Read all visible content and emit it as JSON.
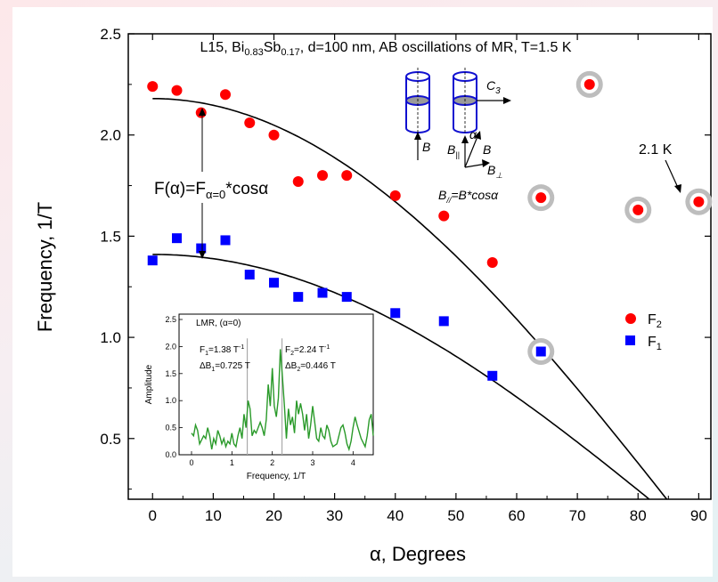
{
  "colors": {
    "f2": "#ff0000",
    "f1": "#0000ff",
    "spectrum": "#2a9a2a",
    "fit": "#000000",
    "halo": "#bdbdbd"
  },
  "chart_data": {
    "type": "scatter",
    "title": "",
    "xlabel": "α, Degrees",
    "ylabel": "Frequency, 1/T",
    "xlim": [
      -4,
      92
    ],
    "ylim": [
      0.2,
      2.5
    ],
    "xticks": [
      "0",
      "10",
      "20",
      "30",
      "40",
      "50",
      "60",
      "70",
      "80",
      "90"
    ],
    "yticks": [
      "0.5",
      "1.0",
      "1.5",
      "2.0",
      "2.5"
    ],
    "legend_position": "right-middle",
    "series": [
      {
        "name": "F2",
        "marker": "circle",
        "points": [
          [
            0,
            2.24
          ],
          [
            4,
            2.22
          ],
          [
            8,
            2.11
          ],
          [
            12,
            2.2
          ],
          [
            16,
            2.06
          ],
          [
            20,
            2.0
          ],
          [
            24,
            1.77
          ],
          [
            28,
            1.8
          ],
          [
            32,
            1.8
          ],
          [
            40,
            1.7
          ],
          [
            48,
            1.6
          ],
          [
            56,
            1.37
          ],
          [
            64,
            1.69
          ],
          [
            72,
            2.25
          ],
          [
            80,
            1.63
          ],
          [
            90,
            1.67
          ]
        ]
      },
      {
        "name": "F1",
        "marker": "square",
        "points": [
          [
            0,
            1.38
          ],
          [
            4,
            1.49
          ],
          [
            8,
            1.44
          ],
          [
            12,
            1.48
          ],
          [
            16,
            1.31
          ],
          [
            20,
            1.27
          ],
          [
            24,
            1.2
          ],
          [
            28,
            1.22
          ],
          [
            32,
            1.2
          ],
          [
            40,
            1.12
          ],
          [
            48,
            1.08
          ],
          [
            56,
            0.81
          ],
          [
            64,
            0.93
          ]
        ]
      }
    ],
    "highlighted_points": [
      [
        64,
        1.69
      ],
      [
        72,
        2.25
      ],
      [
        80,
        1.63
      ],
      [
        90,
        1.67
      ],
      [
        64,
        0.93
      ]
    ],
    "fit_curves": [
      {
        "label": "F(α)=Fα=0*cosα",
        "F0": 2.18
      },
      {
        "label": "F(α)=Fα=0*cosα",
        "F0": 1.41
      }
    ],
    "annotations": {
      "header": "L15, Bi0.83Sb0.17, d=100 nm, AB oscillations of MR, T=1.5 K",
      "fit_formula": "F(α)=Fα=0*cosα",
      "temp_label": "2.1 K",
      "b_relation": "B∥=B*cosα",
      "diagram": {
        "c3": "C3",
        "b": "B",
        "b_par": "B∥",
        "alpha": "α",
        "b_perp": "B⊥"
      }
    },
    "inset": {
      "type": "line",
      "title": "LMR, (α=0)",
      "xlabel": "Frequency, 1/T",
      "ylabel": "Amplitude",
      "xlim": [
        0,
        4.5
      ],
      "ylim": [
        0,
        2.5
      ],
      "xticks": [
        "0",
        "1",
        "2",
        "3",
        "4"
      ],
      "yticks": [
        "0.0",
        "0.5",
        "1.0",
        "1.5",
        "2.0",
        "2.5"
      ],
      "f1_label": "F1=1.38 T-1",
      "db1_label": "ΔB1=0.725 T",
      "f2_label": "F2=2.24 T-1",
      "db2_label": "ΔB2=0.446 T",
      "markers": [
        1.38,
        2.24
      ],
      "x": [
        0.0,
        0.05,
        0.1,
        0.15,
        0.2,
        0.3,
        0.35,
        0.4,
        0.45,
        0.5,
        0.55,
        0.6,
        0.65,
        0.7,
        0.75,
        0.8,
        0.85,
        0.9,
        0.95,
        1.0,
        1.05,
        1.1,
        1.15,
        1.2,
        1.25,
        1.3,
        1.35,
        1.4,
        1.45,
        1.5,
        1.55,
        1.6,
        1.7,
        1.75,
        1.8,
        1.85,
        1.9,
        1.95,
        2.0,
        2.05,
        2.1,
        2.15,
        2.2,
        2.25,
        2.3,
        2.35,
        2.4,
        2.45,
        2.5,
        2.55,
        2.6,
        2.65,
        2.7,
        2.75,
        2.8,
        2.85,
        2.9,
        2.95,
        3.0,
        3.05,
        3.1,
        3.15,
        3.2,
        3.25,
        3.3,
        3.35,
        3.4,
        3.45,
        3.5,
        3.6,
        3.7,
        3.75,
        3.8,
        3.85,
        3.9,
        3.95,
        4.0,
        4.05,
        4.1,
        4.2,
        4.3,
        4.35,
        4.4,
        4.45,
        4.5
      ],
      "y": [
        0.4,
        0.35,
        0.55,
        0.45,
        0.2,
        0.35,
        0.3,
        0.5,
        0.35,
        0.1,
        0.3,
        0.2,
        0.45,
        0.35,
        0.2,
        0.3,
        0.15,
        0.25,
        0.2,
        0.4,
        0.2,
        0.15,
        0.35,
        0.5,
        0.3,
        0.75,
        0.5,
        1.0,
        0.85,
        0.35,
        0.45,
        0.4,
        0.6,
        0.5,
        0.35,
        0.65,
        1.3,
        0.9,
        1.6,
        0.9,
        0.7,
        1.05,
        1.95,
        1.45,
        0.9,
        0.3,
        0.85,
        0.55,
        0.7,
        0.4,
        1.0,
        0.75,
        0.95,
        0.75,
        0.45,
        0.75,
        0.3,
        0.55,
        0.9,
        0.6,
        0.3,
        0.25,
        0.5,
        0.35,
        0.3,
        0.55,
        0.45,
        0.25,
        0.15,
        0.2,
        0.5,
        0.55,
        0.4,
        0.2,
        0.1,
        0.25,
        0.5,
        0.7,
        0.55,
        0.3,
        0.15,
        0.35,
        0.65,
        0.75,
        0.35
      ]
    }
  }
}
